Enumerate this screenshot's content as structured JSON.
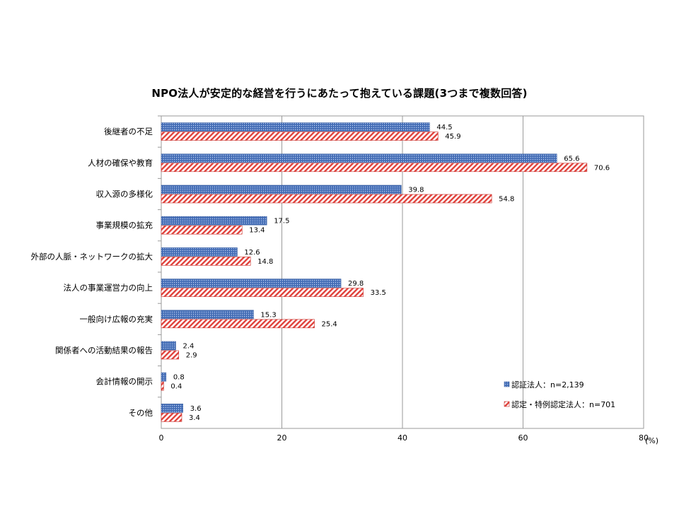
{
  "chart_data": {
    "type": "bar",
    "orientation": "horizontal",
    "title": "NPO法人が安定的な経営を行うにあたって抱えている課題(3つまで複数回答)",
    "categories": [
      "後継者の不足",
      "人材の確保や教育",
      "収入源の多様化",
      "事業規模の拡充",
      "外部の人脈・ネットワークの拡大",
      "法人の事業運営力の向上",
      "一般向け広報の充実",
      "関係者への活動結果の報告",
      "会計情報の開示",
      "その他"
    ],
    "series": [
      {
        "name": "認証法人：n=2,139",
        "values": [
          44.5,
          65.6,
          39.8,
          17.5,
          12.6,
          29.8,
          15.3,
          2.4,
          0.8,
          3.6
        ],
        "labels": [
          "44.5",
          "65.6",
          "39.8",
          "17.5",
          "12.6",
          "29.8",
          "15.3",
          "2.4",
          "0.8",
          "3.6"
        ],
        "color": "#4f78c0",
        "pattern": "dots"
      },
      {
        "name": "認定・特例認定法人：n=701",
        "values": [
          45.9,
          70.6,
          54.8,
          13.4,
          14.8,
          33.5,
          25.4,
          2.9,
          0.4,
          3.4
        ],
        "labels": [
          "45.9",
          "70.6",
          "54.8",
          "13.4",
          "14.8",
          "33.5",
          "25.4",
          "2.9",
          "0.4",
          "3.4"
        ],
        "color": "#e0413b",
        "pattern": "diagonal-stripes"
      }
    ],
    "xlim": [
      0,
      80
    ],
    "xticks": [
      0,
      20,
      40,
      60,
      80
    ],
    "xtick_labels": [
      "0",
      "20",
      "40",
      "60",
      "80"
    ],
    "x_unit": "(%)",
    "grid": "vertical",
    "legend_position": "bottom-right-inside"
  }
}
